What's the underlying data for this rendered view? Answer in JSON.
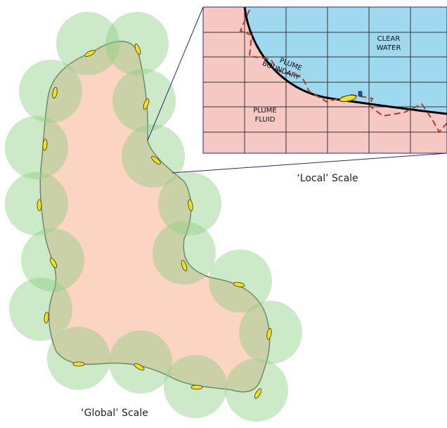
{
  "inset": {
    "clear_water": [
      "CLEAR",
      "WATER"
    ],
    "plume_boundary": [
      "PLUME",
      "BOUNDARY"
    ],
    "plume_fluid": [
      "PLUME",
      "FLUID"
    ],
    "caption": "‘Local’ Scale"
  },
  "main": {
    "caption": "‘Global’ Scale"
  }
}
